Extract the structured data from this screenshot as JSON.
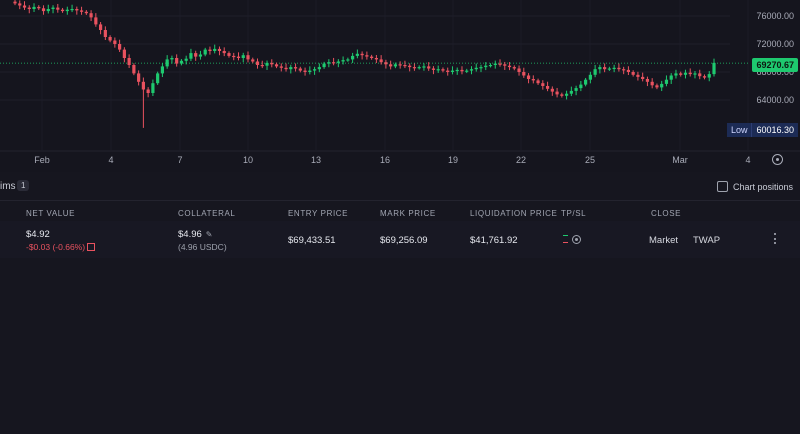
{
  "colors": {
    "up": "#1ec96f",
    "down": "#e8525f",
    "background": "#15151e",
    "low_badge": "#1c2b55"
  },
  "chart": {
    "price_axis": [
      "76000.00",
      "72000.00",
      "68000.00",
      "64000.00"
    ],
    "current_price": "69270.67",
    "low_label": "Low",
    "low_value": "60016.30",
    "x_axis": [
      "Feb",
      "4",
      "7",
      "10",
      "13",
      "16",
      "19",
      "22",
      "25",
      "Mar",
      "4"
    ],
    "settings_icon": "gear-icon"
  },
  "chart_data": {
    "type": "candlestick",
    "y_ticks": [
      76000,
      72000,
      68000,
      64000
    ],
    "x_ticks": [
      "Feb",
      "4",
      "7",
      "10",
      "13",
      "16",
      "19",
      "22",
      "25",
      "Mar",
      "4"
    ],
    "current_price": 69270.67,
    "low": 60016.3,
    "closes": [
      77800,
      77500,
      77200,
      77000,
      77300,
      77100,
      76700,
      77000,
      77200,
      76900,
      76700,
      76900,
      77000,
      76800,
      76600,
      76400,
      75800,
      74800,
      74000,
      73000,
      72500,
      72000,
      71200,
      70000,
      69000,
      67800,
      66600,
      65500,
      65000,
      66400,
      67800,
      68800,
      69800,
      70000,
      69200,
      69600,
      69900,
      70700,
      70200,
      70500,
      71200,
      71000,
      71300,
      71000,
      70700,
      70300,
      70200,
      70000,
      70400,
      69800,
      69500,
      69000,
      68900,
      69300,
      69100,
      68800,
      68600,
      68400,
      68700,
      68500,
      68200,
      68000,
      68200,
      68400,
      68700,
      69200,
      69400,
      69300,
      69500,
      69700,
      69800,
      70300,
      70600,
      70400,
      70200,
      70000,
      69800,
      69400,
      69100,
      68800,
      69100,
      69000,
      68900,
      68700,
      68600,
      68700,
      68800,
      68500,
      68300,
      68400,
      68200,
      68000,
      68200,
      68300,
      68100,
      68200,
      68400,
      68600,
      68700,
      68900,
      69000,
      69200,
      69100,
      68900,
      68700,
      68500,
      68000,
      67500,
      67000,
      66800,
      66400,
      66000,
      65600,
      65200,
      64800,
      64600,
      64900,
      65300,
      65700,
      66200,
      66900,
      67600,
      68400,
      68700,
      68400,
      68500,
      68600,
      68400,
      68300,
      68000,
      67600,
      67300,
      67000,
      66600,
      66100,
      65800,
      66300,
      66900,
      67500,
      67800,
      67600,
      67900,
      67700,
      67800,
      67400,
      67200,
      67700,
      69300
    ]
  },
  "positions_tab": {
    "label": "ims",
    "count": "1",
    "chart_positions_label": "Chart positions"
  },
  "columns": [
    "NET VALUE",
    "COLLATERAL",
    "ENTRY PRICE",
    "MARK PRICE",
    "LIQUIDATION PRICE",
    "TP/SL",
    "CLOSE"
  ],
  "position": {
    "net_value": "$4.92",
    "pnl": "-$0.03 (-0.66%)",
    "collateral": "$4.96",
    "collateral_usdc": "(4.96 USDC)",
    "entry_price": "$69,433.51",
    "mark_price": "$69,256.09",
    "liquidation_price": "$41,761.92",
    "close_market": "Market",
    "close_twap": "TWAP"
  }
}
